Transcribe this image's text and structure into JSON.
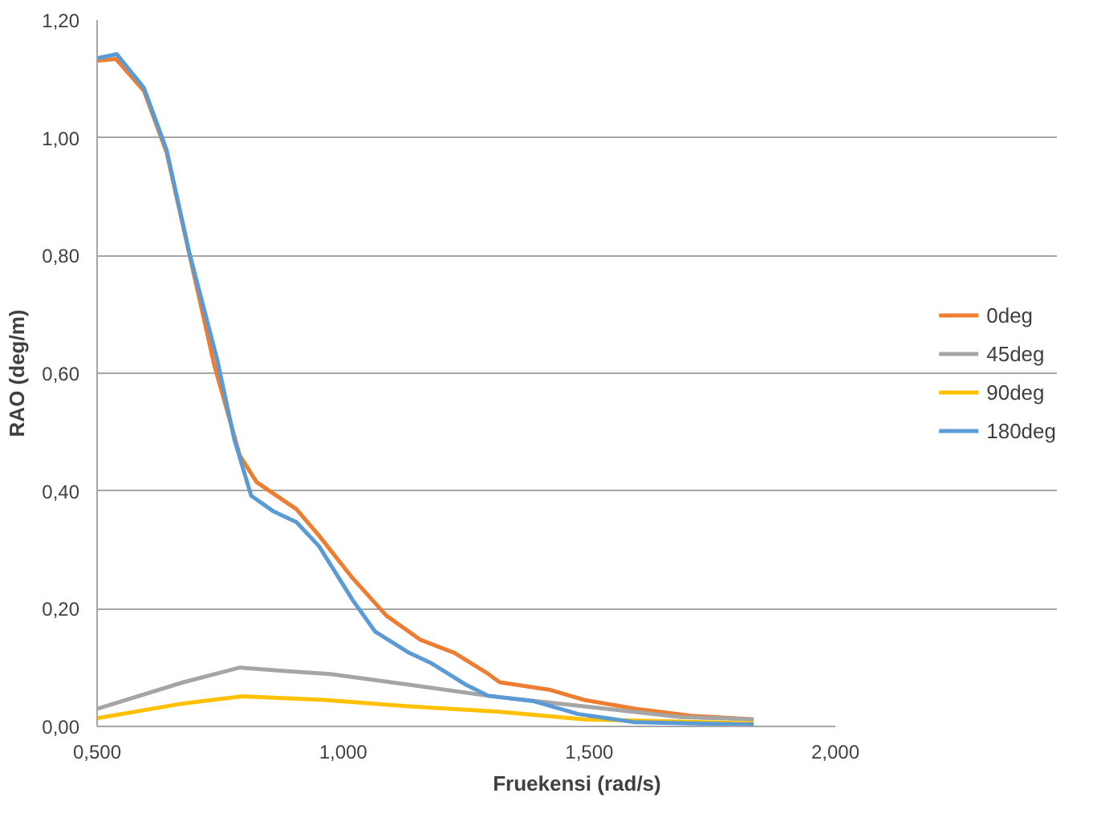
{
  "chart_data": {
    "type": "line",
    "xlabel": "Fruekensi (rad/s)",
    "ylabel": "RAO (deg/m)",
    "xlim": [
      0.5,
      2.0
    ],
    "ylim": [
      0,
      1.2
    ],
    "xticks": [
      {
        "value": 0.5,
        "label": "0,500"
      },
      {
        "value": 1.0,
        "label": "1,000"
      },
      {
        "value": 1.5,
        "label": "1,500"
      },
      {
        "value": 2.0,
        "label": "2,000"
      }
    ],
    "yticks": [
      {
        "value": 0,
        "label": "0,00"
      },
      {
        "value": 0.2,
        "label": "0,20"
      },
      {
        "value": 0.4,
        "label": "0,40"
      },
      {
        "value": 0.6,
        "label": "0,60"
      },
      {
        "value": 0.8,
        "label": "0,80"
      },
      {
        "value": 1.0,
        "label": "1,00"
      },
      {
        "value": 1.2,
        "label": "1,20"
      }
    ],
    "grid": "y",
    "legend": "right",
    "marker": "none",
    "line_style": "solid",
    "series": [
      {
        "name": "0deg",
        "color": "#ed7d31",
        "x": [
          0.5,
          0.538,
          0.595,
          0.641,
          0.687,
          0.738,
          0.79,
          0.824,
          0.905,
          0.951,
          1.019,
          1.088,
          1.157,
          1.226,
          1.295,
          1.318,
          1.421,
          1.49,
          1.593,
          1.707,
          1.834
        ],
        "values": [
          1.131,
          1.134,
          1.08,
          0.976,
          0.804,
          0.614,
          0.46,
          0.415,
          0.369,
          0.324,
          0.252,
          0.188,
          0.147,
          0.125,
          0.089,
          0.075,
          0.062,
          0.045,
          0.03,
          0.018,
          0.012
        ]
      },
      {
        "name": "45deg",
        "color": "#a5a5a5",
        "x": [
          0.5,
          0.675,
          0.79,
          0.882,
          0.974,
          1.134,
          1.295,
          1.49,
          1.685,
          1.834
        ],
        "values": [
          0.03,
          0.075,
          0.1,
          0.094,
          0.089,
          0.071,
          0.052,
          0.034,
          0.016,
          0.012
        ]
      },
      {
        "name": "90deg",
        "color": "#ffc000",
        "x": [
          0.5,
          0.675,
          0.795,
          0.962,
          1.134,
          1.318,
          1.49,
          1.834
        ],
        "values": [
          0.014,
          0.039,
          0.051,
          0.045,
          0.034,
          0.025,
          0.012,
          0.005
        ]
      },
      {
        "name": "180deg",
        "color": "#5b9bd5",
        "x": [
          0.5,
          0.54,
          0.595,
          0.641,
          0.687,
          0.744,
          0.779,
          0.813,
          0.859,
          0.905,
          0.951,
          1.019,
          1.065,
          1.134,
          1.18,
          1.249,
          1.295,
          1.386,
          1.478,
          1.593,
          1.834
        ],
        "values": [
          1.135,
          1.142,
          1.085,
          0.98,
          0.806,
          0.623,
          0.487,
          0.392,
          0.365,
          0.347,
          0.306,
          0.215,
          0.161,
          0.125,
          0.107,
          0.071,
          0.052,
          0.043,
          0.021,
          0.007,
          0.003
        ]
      }
    ]
  }
}
